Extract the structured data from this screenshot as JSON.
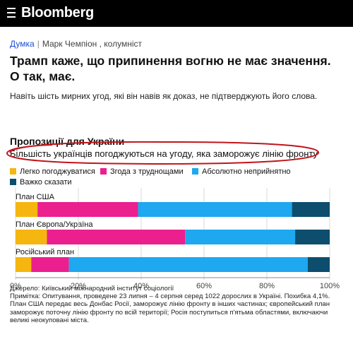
{
  "header": {
    "logo": "Bloomberg",
    "menu_icon": "hamburger-menu-icon"
  },
  "byline": {
    "section": "Думка",
    "author": "Марк Чемпіон , колумніст"
  },
  "article": {
    "headline_line1": "Трамп каже, що припинення вогню не має значення.",
    "headline_line2": "О так, має.",
    "dek": "Навіть шість мирних угод, які він навів як доказ, не підтверджують його слова."
  },
  "chart_data": {
    "type": "bar",
    "orientation": "horizontal-stacked-100",
    "title": "Пропозиції для України",
    "subtitle": "Більшість українців погоджуються на угоду, яка заморожує лінію фронту",
    "categories": [
      "План США",
      "План Європа/Україна",
      "Російський план"
    ],
    "series": [
      {
        "name": "Легко погоджуватися",
        "color": "#f5b60f",
        "values": [
          7,
          10,
          5
        ]
      },
      {
        "name": "Згода з труднощами",
        "color": "#ec1f8f",
        "values": [
          32,
          44,
          12
        ]
      },
      {
        "name": "Абсолютно неприйнятно",
        "color": "#1da8ef",
        "values": [
          49,
          35,
          76
        ]
      },
      {
        "name": "Важко сказати",
        "color": "#0d4d6e",
        "values": [
          12,
          11,
          7
        ]
      }
    ],
    "x_ticks": [
      "0%",
      "20%",
      "40%",
      "60%",
      "80%",
      "100%"
    ],
    "xlim": [
      0,
      100
    ],
    "legend_position": "top",
    "annotation": "red hand-drawn circle around the subtitle"
  },
  "footer": {
    "source": "Джерело: Київський міжнародний інститут соціології",
    "note_line1": "Примітка: Опитування, проведене 23 липня – 4 серпня серед 1022 дорослих в Україні. Похибка 4,1%.",
    "note_line2": "План США передає весь Донбас Росії, заморожує лінію фронту в інших частинах; європейський план",
    "note_line3": "заморожує поточну лінію фронту по всій території; Росія поступиться п'ятьма областями, включаючи",
    "note_line4": "великі неокуповані міста."
  },
  "colors": {
    "annotation_red": "#c0151b",
    "byline_link": "#1c4cd6"
  }
}
